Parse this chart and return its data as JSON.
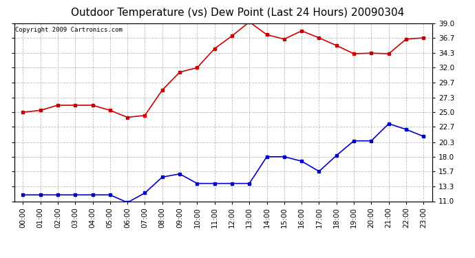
{
  "title": "Outdoor Temperature (vs) Dew Point (Last 24 Hours) 20090304",
  "copyright_text": "Copyright 2009 Cartronics.com",
  "hours": [
    "00:00",
    "01:00",
    "02:00",
    "03:00",
    "04:00",
    "05:00",
    "06:00",
    "07:00",
    "08:00",
    "09:00",
    "10:00",
    "11:00",
    "12:00",
    "13:00",
    "14:00",
    "15:00",
    "16:00",
    "17:00",
    "18:00",
    "19:00",
    "20:00",
    "21:00",
    "22:00",
    "23:00"
  ],
  "temp": [
    25.0,
    25.3,
    26.1,
    26.1,
    26.1,
    25.3,
    24.2,
    24.5,
    28.5,
    31.3,
    32.0,
    35.0,
    37.0,
    39.2,
    37.2,
    36.5,
    37.8,
    36.7,
    35.5,
    34.2,
    34.3,
    34.2,
    36.5,
    36.7
  ],
  "dew": [
    12.0,
    12.0,
    12.0,
    12.0,
    12.0,
    12.0,
    10.8,
    12.3,
    14.8,
    15.3,
    13.8,
    13.8,
    13.8,
    13.8,
    18.0,
    18.0,
    17.3,
    15.7,
    18.2,
    20.5,
    20.5,
    23.2,
    22.3,
    21.2
  ],
  "temp_color": "#cc0000",
  "dew_color": "#0000cc",
  "marker": "s",
  "markersize": 3,
  "linewidth": 1.2,
  "ylim": [
    11.0,
    39.0
  ],
  "yticks": [
    11.0,
    13.3,
    15.7,
    18.0,
    20.3,
    22.7,
    25.0,
    27.3,
    29.7,
    32.0,
    34.3,
    36.7,
    39.0
  ],
  "grid_color": "#bbbbbb",
  "grid_style": "--",
  "bg_color": "#ffffff",
  "title_fontsize": 11,
  "copyright_fontsize": 6.5,
  "tick_fontsize": 7.5,
  "xlabel_rotation": 90
}
